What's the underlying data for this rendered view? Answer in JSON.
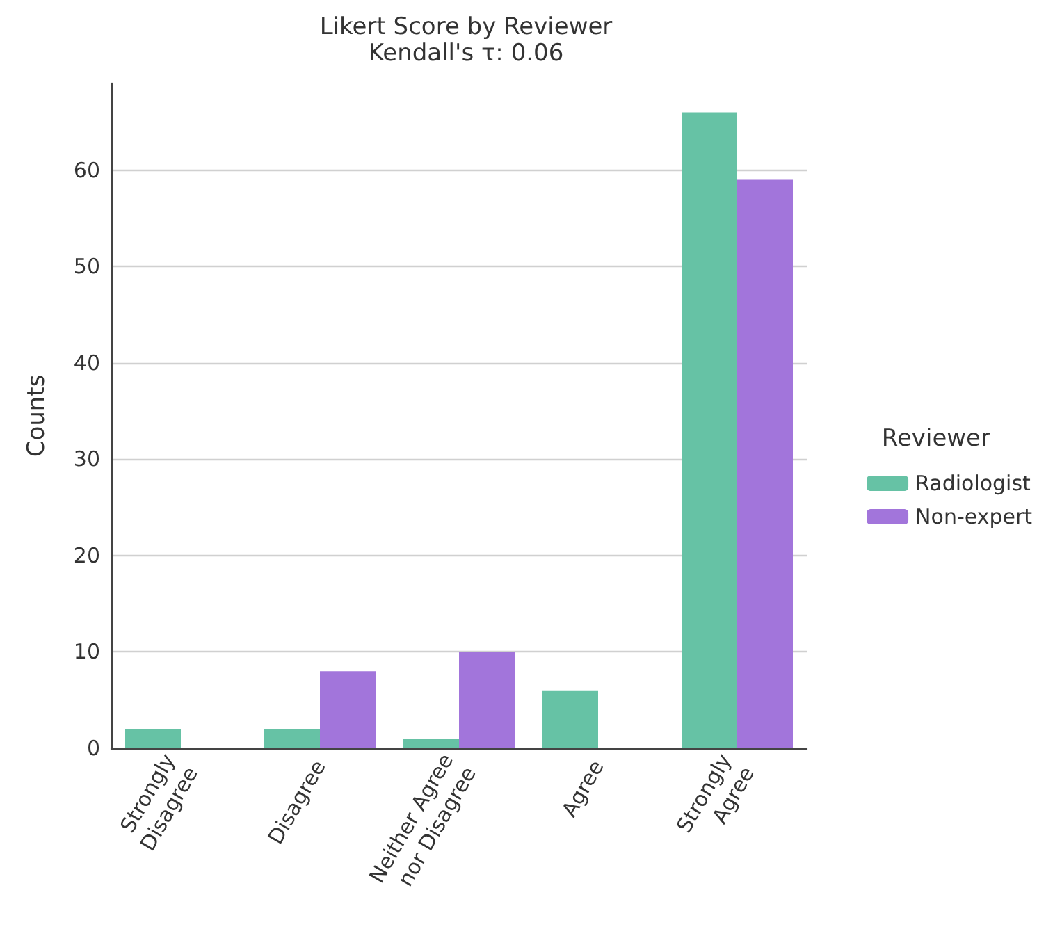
{
  "chart_data": {
    "type": "bar",
    "title": "Likert Score by Reviewer",
    "subtitle": "Kendall's τ: 0.06",
    "ylabel": "Counts",
    "legend_title": "Reviewer",
    "categories": [
      "Strongly\nDisagree",
      "Disagree",
      "Neither Agree\nnor Disagree",
      "Agree",
      "Strongly\nAgree"
    ],
    "series": [
      {
        "name": "Radiologist",
        "color": "#66c2a5",
        "values": [
          2,
          2,
          1,
          6,
          66
        ]
      },
      {
        "name": "Non-expert",
        "color": "#a275db",
        "values": [
          0,
          8,
          10,
          0,
          59
        ]
      }
    ],
    "ylim": [
      0,
      69
    ],
    "yticks": [
      0,
      10,
      20,
      30,
      40,
      50,
      60
    ],
    "grid": "y",
    "legend": "right"
  }
}
